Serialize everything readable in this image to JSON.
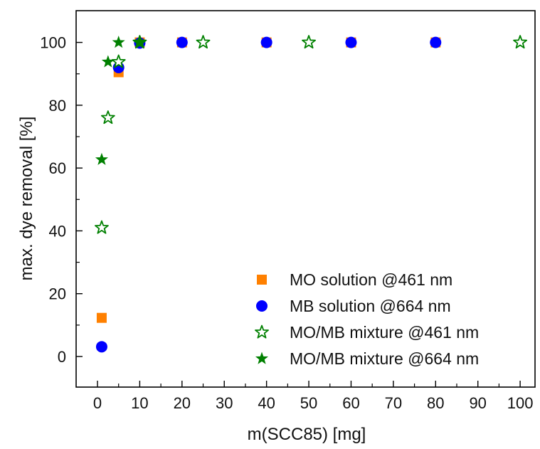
{
  "chart_data": {
    "type": "scatter",
    "xlabel": "m(SCC85) [mg]",
    "ylabel": "max. dye removal [%]",
    "xlim": [
      -5,
      102
    ],
    "ylim": [
      -10,
      110
    ],
    "xticks": [
      0,
      10,
      20,
      30,
      40,
      50,
      60,
      70,
      80,
      90,
      100
    ],
    "yticks": [
      0,
      20,
      40,
      60,
      80,
      100
    ],
    "grid": false,
    "legend_position": "bottom-right",
    "series": [
      {
        "name": "MO solution @461 nm",
        "marker": "square",
        "color": "#FF8000",
        "x": [
          1,
          5,
          10,
          20,
          40,
          60,
          80
        ],
        "y": [
          12.3,
          90.5,
          100,
          100,
          100,
          100,
          100
        ]
      },
      {
        "name": "MB solution @664 nm",
        "marker": "circle",
        "color": "#0000FF",
        "x": [
          1,
          5,
          10,
          20,
          40,
          60,
          80
        ],
        "y": [
          3.1,
          92.0,
          99.8,
          100,
          100,
          100,
          100
        ]
      },
      {
        "name": "MO/MB mixture @461 nm",
        "marker": "star-open",
        "color": "#008000",
        "x": [
          1,
          2.5,
          5,
          10,
          25,
          50,
          100
        ],
        "y": [
          41,
          76,
          93.8,
          100,
          100,
          100,
          100
        ]
      },
      {
        "name": "MO/MB mixture @664 nm",
        "marker": "star-filled",
        "color": "#008000",
        "x": [
          1,
          2.5,
          5,
          10
        ],
        "y": [
          62.7,
          93.8,
          100,
          100
        ]
      }
    ]
  }
}
